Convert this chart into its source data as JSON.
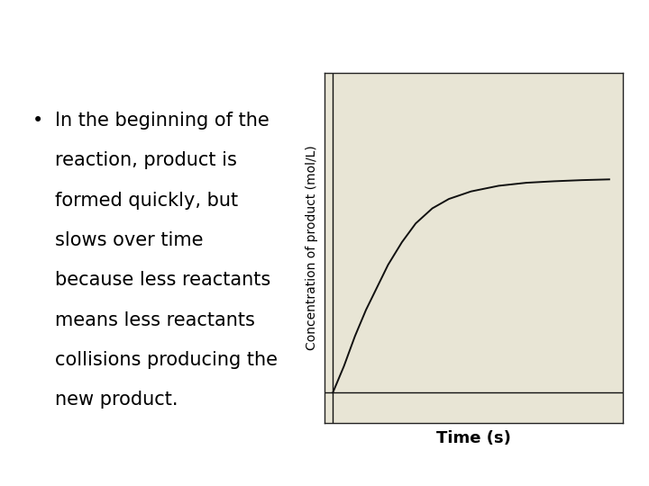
{
  "background_color": "#ffffff",
  "chart_bg_color": "#e8e5d5",
  "chart_border_color": "#222222",
  "ylabel": "Concentration of product (mol/L)",
  "xlabel": "Time (s)",
  "ylabel_fontsize": 10,
  "xlabel_fontsize": 13,
  "bullet_fontsize": 15,
  "text_color": "#000000",
  "line_color": "#111111",
  "line_width": 1.4,
  "curve_x": [
    0.0,
    0.04,
    0.08,
    0.12,
    0.16,
    0.2,
    0.25,
    0.3,
    0.36,
    0.42,
    0.5,
    0.6,
    0.7,
    0.8,
    0.9,
    1.0
  ],
  "curve_y": [
    0.0,
    0.07,
    0.15,
    0.22,
    0.28,
    0.34,
    0.4,
    0.45,
    0.49,
    0.515,
    0.535,
    0.55,
    0.558,
    0.562,
    0.565,
    0.567
  ],
  "text_lines": [
    "In the beginning of the",
    "reaction, product is",
    "formed quickly, but",
    "slows over time",
    "because less reactants",
    "means less reactants",
    "collisions producing the",
    "new product."
  ],
  "fig_width": 7.2,
  "fig_height": 5.4,
  "dpi": 100
}
